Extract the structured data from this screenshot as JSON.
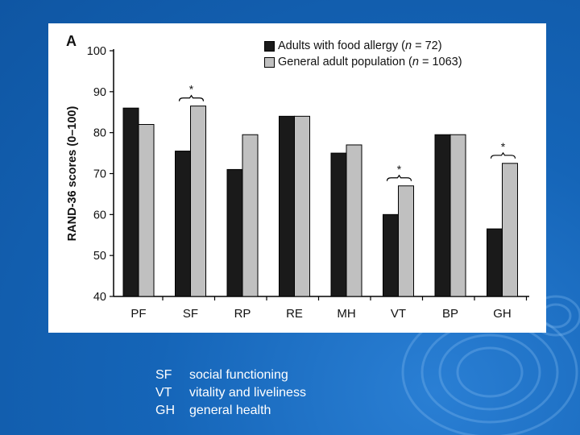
{
  "chart_data": {
    "type": "bar",
    "panel_label": "A",
    "ylabel": "RAND-36 scores (0–100)",
    "ylim": [
      40,
      100
    ],
    "yticks": [
      40,
      50,
      60,
      70,
      80,
      90,
      100
    ],
    "categories": [
      "PF",
      "SF",
      "RP",
      "RE",
      "MH",
      "VT",
      "BP",
      "GH"
    ],
    "series": [
      {
        "name": "Adults with food allergy",
        "n": "72",
        "color": "#1a1a1a",
        "values": [
          86,
          75.5,
          71,
          84,
          75,
          60,
          79.5,
          56.5
        ]
      },
      {
        "name": "General adult population",
        "n": "1063",
        "color": "#c0c0c0",
        "values": [
          82,
          86.5,
          79.5,
          84,
          77,
          67,
          79.5,
          72.5
        ]
      }
    ],
    "significance": [
      {
        "category": "SF",
        "label": "*"
      },
      {
        "category": "VT",
        "label": "*"
      },
      {
        "category": "GH",
        "label": "*"
      }
    ],
    "legend_position": "top-right"
  },
  "legend_items": [
    {
      "prefix": "Adults with food allergy (",
      "n_symbol": "n",
      "suffix": " = 72)"
    },
    {
      "prefix": "General adult population (",
      "n_symbol": "n",
      "suffix": " = 1063)"
    }
  ],
  "abbreviations": [
    {
      "code": "SF",
      "meaning": "social functioning"
    },
    {
      "code": "VT",
      "meaning": "vitality and liveliness"
    },
    {
      "code": "GH",
      "meaning": "general health"
    }
  ]
}
